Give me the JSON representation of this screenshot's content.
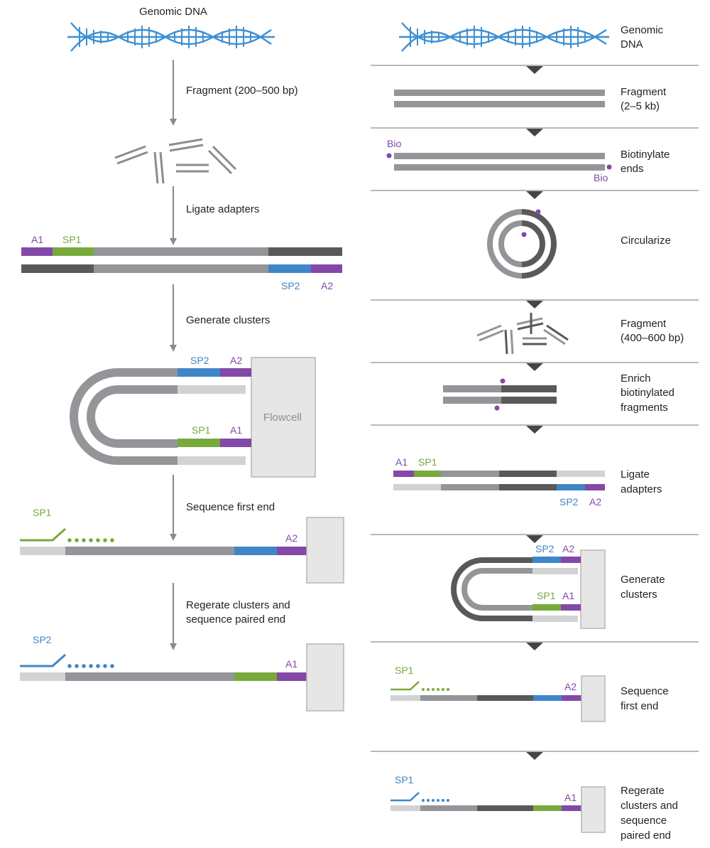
{
  "colors": {
    "dna": "#3f8fd2",
    "purple": "#8348a8",
    "green": "#78a93c",
    "blue": "#3f86c8",
    "gray_mid": "#939598",
    "gray_dark": "#58595b",
    "gray_light": "#d1d2d4",
    "divider": "#b8b8b8",
    "text": "#231f20"
  },
  "left": {
    "genomic_dna": "Genomic DNA",
    "step_fragment": "Fragment (200–500 bp)",
    "step_ligate": "Ligate adapters",
    "step_clusters": "Generate clusters",
    "step_first_end": "Sequence first end",
    "step_paired_line1": "Regerate clusters and",
    "step_paired_line2": "sequence paired end",
    "flowcell": "Flowcell",
    "tags": {
      "a1": "A1",
      "sp1": "SP1",
      "sp2": "SP2",
      "a2": "A2"
    }
  },
  "right": {
    "genomic_dna_line1": "Genomic",
    "genomic_dna_line2": "DNA",
    "fragment_line1": "Fragment",
    "fragment_line2": "(2–5 kb)",
    "biotinylate_line1": "Biotinylate",
    "biotinylate_line2": "ends",
    "bio": "Bio",
    "circularize": "Circularize",
    "fragment2_line1": "Fragment",
    "fragment2_line2": "(400–600 bp)",
    "enrich_line1": "Enrich",
    "enrich_line2": "biotinylated",
    "enrich_line3": "fragments",
    "ligate_line1": "Ligate",
    "ligate_line2": "adapters",
    "clusters_line1": "Generate",
    "clusters_line2": "clusters",
    "first_end_line1": "Sequence",
    "first_end_line2": "first end",
    "paired_line1": "Regerate",
    "paired_line2": "clusters and",
    "paired_line3": "sequence",
    "paired_line4": "paired end",
    "tags": {
      "a1": "A1",
      "sp1": "SP1",
      "sp2": "SP2",
      "a2": "A2"
    }
  }
}
